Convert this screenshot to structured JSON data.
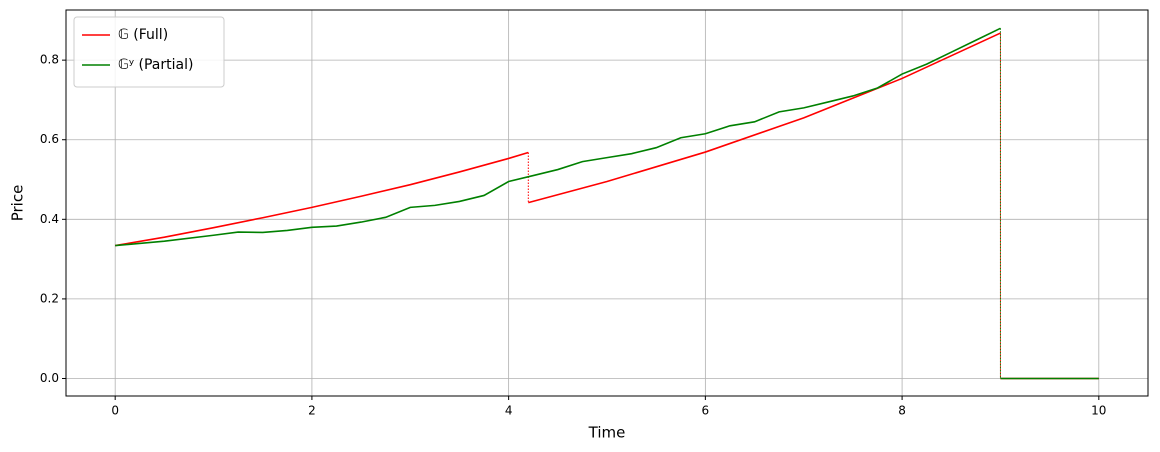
{
  "chart_data": {
    "type": "line",
    "xlabel": "Time",
    "ylabel": "Price",
    "xlim": [
      -0.5,
      10.5
    ],
    "ylim": [
      -0.044,
      0.926
    ],
    "xticks": [
      0,
      2,
      4,
      6,
      8,
      10
    ],
    "yticks": [
      {
        "value": 0,
        "label": "0.0"
      },
      0.2,
      0.4,
      0.6,
      0.8
    ],
    "grid": true,
    "legend": "upper left",
    "series": [
      {
        "name": "𝔾 (Full)",
        "color": "#ff0000",
        "x": [
          0,
          0.5,
          1,
          1.5,
          2,
          2.5,
          3,
          3.5,
          4,
          4.2,
          null,
          4.2,
          5,
          6,
          7,
          8,
          9,
          null,
          9,
          10
        ],
        "values": [
          0.334,
          0.355,
          0.379,
          0.404,
          0.43,
          0.458,
          0.487,
          0.519,
          0.553,
          0.568,
          null,
          0.442,
          0.495,
          0.569,
          0.655,
          0.754,
          0.868,
          null,
          0,
          0
        ]
      },
      {
        "name": "𝔾ʸ (Partial)",
        "color": "#008000",
        "x": [
          0,
          0.5,
          1,
          1.25,
          1.5,
          1.75,
          2,
          2.25,
          2.5,
          2.75,
          3,
          3.25,
          3.5,
          3.75,
          4,
          4.25,
          4.5,
          4.75,
          5,
          5.25,
          5.5,
          5.75,
          6,
          6.25,
          6.5,
          6.75,
          7,
          7.25,
          7.5,
          7.75,
          8,
          8.25,
          8.5,
          8.75,
          9,
          null,
          9,
          10
        ],
        "values": [
          0.334,
          0.345,
          0.36,
          0.368,
          0.367,
          0.372,
          0.38,
          0.383,
          0.393,
          0.405,
          0.43,
          0.435,
          0.445,
          0.46,
          0.495,
          0.51,
          0.525,
          0.545,
          0.555,
          0.565,
          0.58,
          0.605,
          0.615,
          0.635,
          0.645,
          0.67,
          0.68,
          0.695,
          0.71,
          0.73,
          0.765,
          0.79,
          0.82,
          0.85,
          0.88,
          null,
          0,
          0
        ]
      }
    ]
  }
}
